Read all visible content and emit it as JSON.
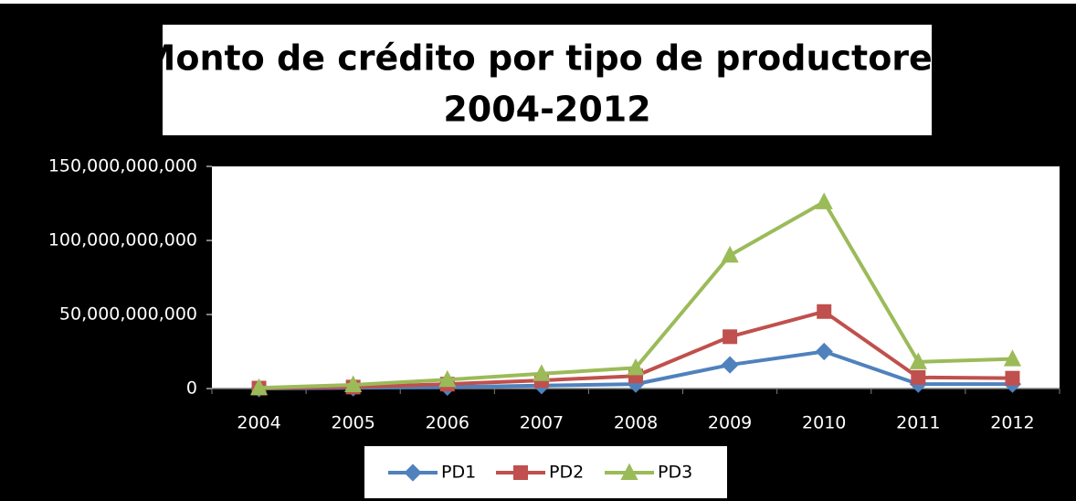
{
  "chart_data": {
    "type": "line",
    "title": [
      "Monto de crédito por tipo de productores",
      "2004-2012"
    ],
    "categories": [
      "2004",
      "2005",
      "2006",
      "2007",
      "2008",
      "2009",
      "2010",
      "2011",
      "2012"
    ],
    "series": [
      {
        "name": "PD1",
        "color": "#4f81bd",
        "marker": "diamond",
        "values": [
          0,
          500000000,
          1000000000,
          2000000000,
          3000000000,
          16000000000,
          25000000000,
          3000000000,
          3000000000
        ]
      },
      {
        "name": "PD2",
        "color": "#c0504d",
        "marker": "square",
        "values": [
          300000000,
          1000000000,
          3000000000,
          5500000000,
          8500000000,
          35000000000,
          52000000000,
          7500000000,
          7000000000
        ]
      },
      {
        "name": "PD3",
        "color": "#9bbb59",
        "marker": "triangle",
        "values": [
          500000000,
          2500000000,
          6000000000,
          10000000000,
          14000000000,
          90000000000,
          126000000000,
          18000000000,
          20000000000
        ]
      }
    ],
    "ylim": [
      0,
      150000000000
    ],
    "yticks": [
      0,
      {
        "value": 50000000000,
        "label": "50,000,000,000"
      },
      {
        "value": 100000000000,
        "label": "100,000,000,000"
      },
      {
        "value": 150000000000,
        "label": "150,000,000,000"
      }
    ],
    "legend": "bottom"
  }
}
